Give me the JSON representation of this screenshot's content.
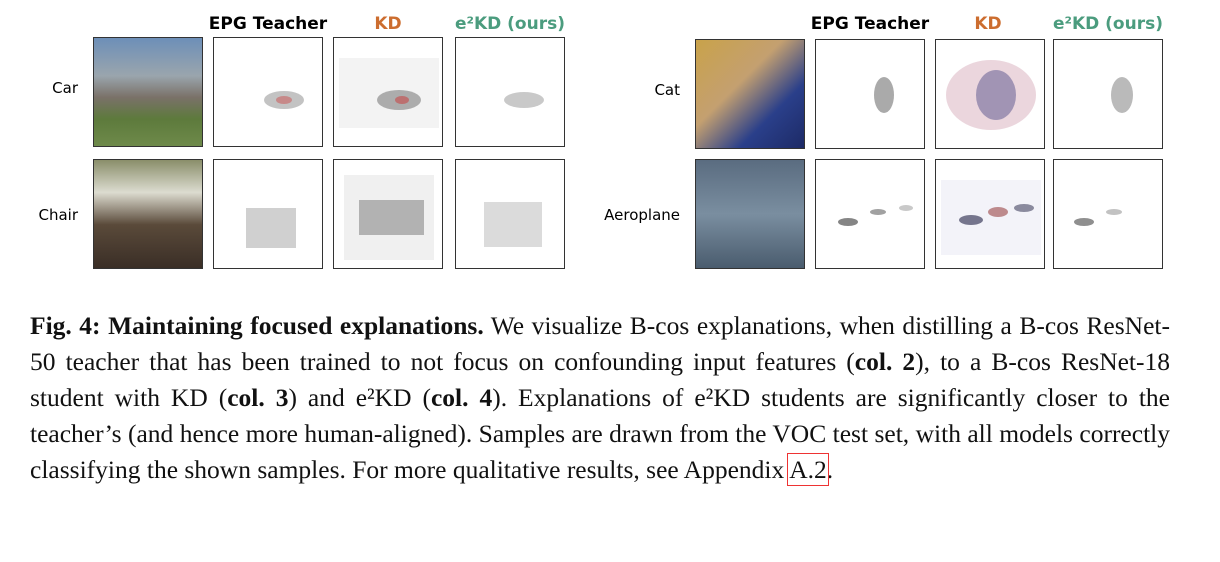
{
  "figure": {
    "panels": [
      {
        "headers": [
          "EPG Teacher",
          "KD",
          "e²KD (ours)"
        ],
        "rows": [
          "Car",
          "Chair"
        ]
      },
      {
        "headers": [
          "EPG Teacher",
          "KD",
          "e²KD (ours)"
        ],
        "rows": [
          "Cat",
          "Aeroplane"
        ]
      }
    ]
  },
  "caption": {
    "segments": [
      {
        "text": "Fig. 4: Maintaining focused explanations.",
        "bold": true
      },
      {
        "text": " We visualize B-cos explanations, when distilling a B-cos ResNet-50 teacher that has been trained to not focus on confounding input features ("
      },
      {
        "text": "col. 2",
        "bold": true
      },
      {
        "text": "), to a B-cos ResNet-18 student with KD ("
      },
      {
        "text": "col. 3",
        "bold": true
      },
      {
        "text": ") and e²KD ("
      },
      {
        "text": "col. 4",
        "bold": true
      },
      {
        "text": "). Explanations of e²KD students are significantly closer to the teacher’s (and hence more human-aligned). Samples are drawn from the VOC test set, with all models correctly classifying the shown samples. For more qualitative results, see Appendix "
      },
      {
        "text": "A.2",
        "link": true
      },
      {
        "text": "."
      }
    ]
  }
}
